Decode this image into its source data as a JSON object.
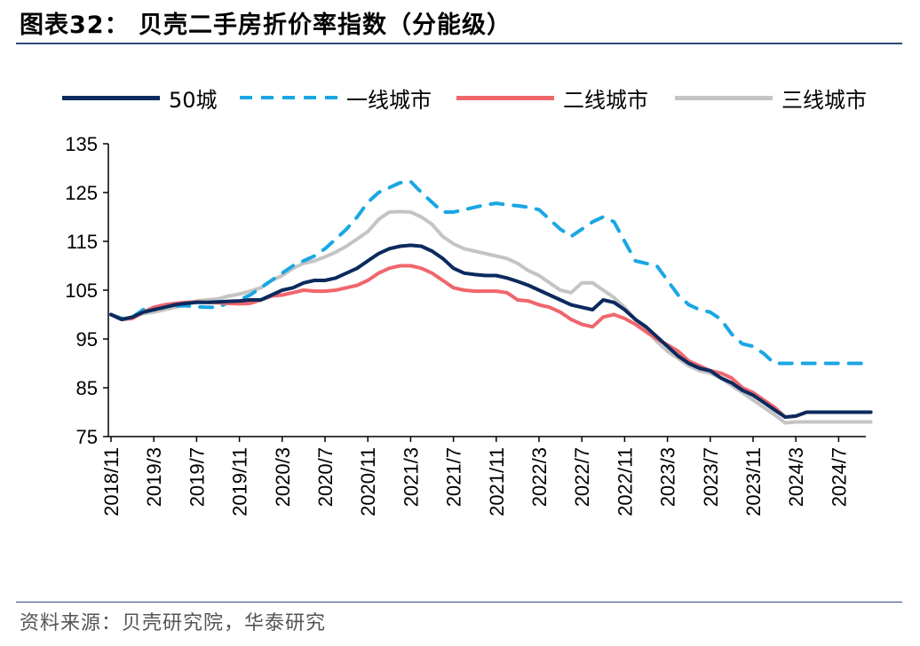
{
  "header": {
    "title": "图表32： 贝壳二手房折价率指数（分能级）"
  },
  "footer": {
    "source": "资料来源：贝壳研究院，华泰研究"
  },
  "chart_data": {
    "type": "line",
    "title": "图表32： 贝壳二手房折价率指数（分能级）",
    "xlabel": "",
    "ylabel": "",
    "ylim": [
      75,
      135
    ],
    "yticks": [
      75,
      85,
      95,
      105,
      115,
      125,
      135
    ],
    "x": [
      "2018/11",
      "2018/12",
      "2019/1",
      "2019/2",
      "2019/3",
      "2019/4",
      "2019/5",
      "2019/6",
      "2019/7",
      "2019/8",
      "2019/9",
      "2019/10",
      "2019/11",
      "2019/12",
      "2020/1",
      "2020/2",
      "2020/3",
      "2020/4",
      "2020/5",
      "2020/6",
      "2020/7",
      "2020/8",
      "2020/9",
      "2020/10",
      "2020/11",
      "2020/12",
      "2021/1",
      "2021/2",
      "2021/3",
      "2021/4",
      "2021/5",
      "2021/6",
      "2021/7",
      "2021/8",
      "2021/9",
      "2021/10",
      "2021/11",
      "2021/12",
      "2022/1",
      "2022/2",
      "2022/3",
      "2022/4",
      "2022/5",
      "2022/6",
      "2022/7",
      "2022/8",
      "2022/9",
      "2022/10",
      "2022/11",
      "2022/12",
      "2023/1",
      "2023/2",
      "2023/3",
      "2023/4",
      "2023/5",
      "2023/6",
      "2023/7",
      "2023/8",
      "2023/9",
      "2023/10",
      "2023/11",
      "2023/12",
      "2024/1",
      "2024/2",
      "2024/3",
      "2024/4",
      "2024/5",
      "2024/6",
      "2024/7",
      "2024/8",
      "2024/9",
      "2024/10"
    ],
    "xtick_labels": [
      "2018/11",
      "2019/3",
      "2019/7",
      "2019/11",
      "2020/3",
      "2020/7",
      "2020/11",
      "2021/3",
      "2021/7",
      "2021/11",
      "2022/3",
      "2022/7",
      "2022/11",
      "2023/3",
      "2023/7",
      "2023/11",
      "2024/3",
      "2024/7"
    ],
    "series": [
      {
        "name": "50城",
        "color": "#0b2a5e",
        "dash": "solid",
        "values": [
          100,
          99,
          99.5,
          100.5,
          101,
          101.5,
          102,
          102.3,
          102.5,
          102.5,
          102.6,
          102.7,
          102.8,
          103,
          103,
          104,
          105,
          105.5,
          106.5,
          107,
          107,
          107.5,
          108.5,
          109.5,
          111,
          112.5,
          113.5,
          114,
          114.2,
          114,
          113,
          111.5,
          109.5,
          108.5,
          108.2,
          108,
          108,
          107.5,
          106.8,
          106,
          105,
          104,
          103,
          102,
          101.5,
          101,
          103,
          102.5,
          101,
          99,
          97.5,
          95.5,
          93.5,
          91.5,
          90,
          89,
          88.5,
          87,
          86,
          84.5,
          83.5,
          82,
          80.5,
          79,
          79.2,
          80,
          80,
          80,
          80,
          80,
          80,
          80
        ]
      },
      {
        "name": "一线城市",
        "color": "#1aa7e3",
        "dash": "dashed",
        "values": [
          100,
          99.2,
          99.5,
          101,
          101.5,
          101.7,
          101.8,
          101.8,
          101.6,
          101.5,
          101.5,
          102.5,
          103,
          104,
          105.5,
          107,
          108.5,
          110,
          111,
          112,
          113.5,
          115.5,
          117.5,
          120,
          123,
          125,
          126,
          127,
          127.3,
          125,
          123,
          121,
          121,
          121.5,
          122,
          122.5,
          122.8,
          122.5,
          122.3,
          122,
          121.5,
          119.5,
          117.5,
          116,
          117.5,
          119,
          120,
          119,
          115,
          111,
          110.5,
          110,
          107,
          104,
          102,
          101,
          100.5,
          99,
          96,
          94,
          93.5,
          92,
          90,
          90,
          90,
          90,
          90,
          90,
          90,
          90,
          90,
          90
        ]
      },
      {
        "name": "二线城市",
        "color": "#f0666d",
        "dash": "solid",
        "values": [
          100,
          99,
          99.2,
          100.5,
          101.5,
          102,
          102.3,
          102.5,
          102.6,
          102.5,
          102.4,
          102.3,
          102.2,
          102.3,
          103,
          103.8,
          104,
          104.5,
          105,
          104.8,
          104.8,
          105,
          105.5,
          106,
          107,
          108.5,
          109.5,
          110,
          110,
          109.5,
          108.5,
          107,
          105.5,
          105,
          104.8,
          104.8,
          104.8,
          104.5,
          103,
          102.8,
          102,
          101.5,
          100.5,
          99,
          98,
          97.5,
          99.5,
          100,
          99.2,
          98,
          96.5,
          95,
          93.8,
          92.5,
          90.5,
          89.5,
          88.5,
          88,
          87,
          85,
          84,
          82.5,
          81,
          79,
          79.2,
          80,
          80,
          80,
          80,
          80,
          80,
          80
        ]
      },
      {
        "name": "三线城市",
        "color": "#c4c4c4",
        "dash": "solid",
        "values": [
          100,
          99,
          99.5,
          100.2,
          100.5,
          101,
          101.5,
          102,
          102.8,
          103,
          103.2,
          103.8,
          104.2,
          104.8,
          105.5,
          107,
          108,
          109.5,
          110.5,
          111,
          111.8,
          112.8,
          114,
          115.5,
          117,
          119.5,
          121,
          121.1,
          121,
          120,
          118.5,
          116,
          114.5,
          113.5,
          113,
          112.5,
          112,
          111.5,
          110.5,
          109,
          108,
          106.5,
          105,
          104.5,
          106.5,
          106.5,
          105,
          103.5,
          101.5,
          99,
          97,
          94.5,
          92.5,
          91,
          89.5,
          88.5,
          88,
          87,
          85.5,
          84,
          82.5,
          81,
          79.5,
          77.8,
          78,
          78,
          78,
          78,
          78,
          78,
          78,
          78
        ]
      }
    ]
  }
}
